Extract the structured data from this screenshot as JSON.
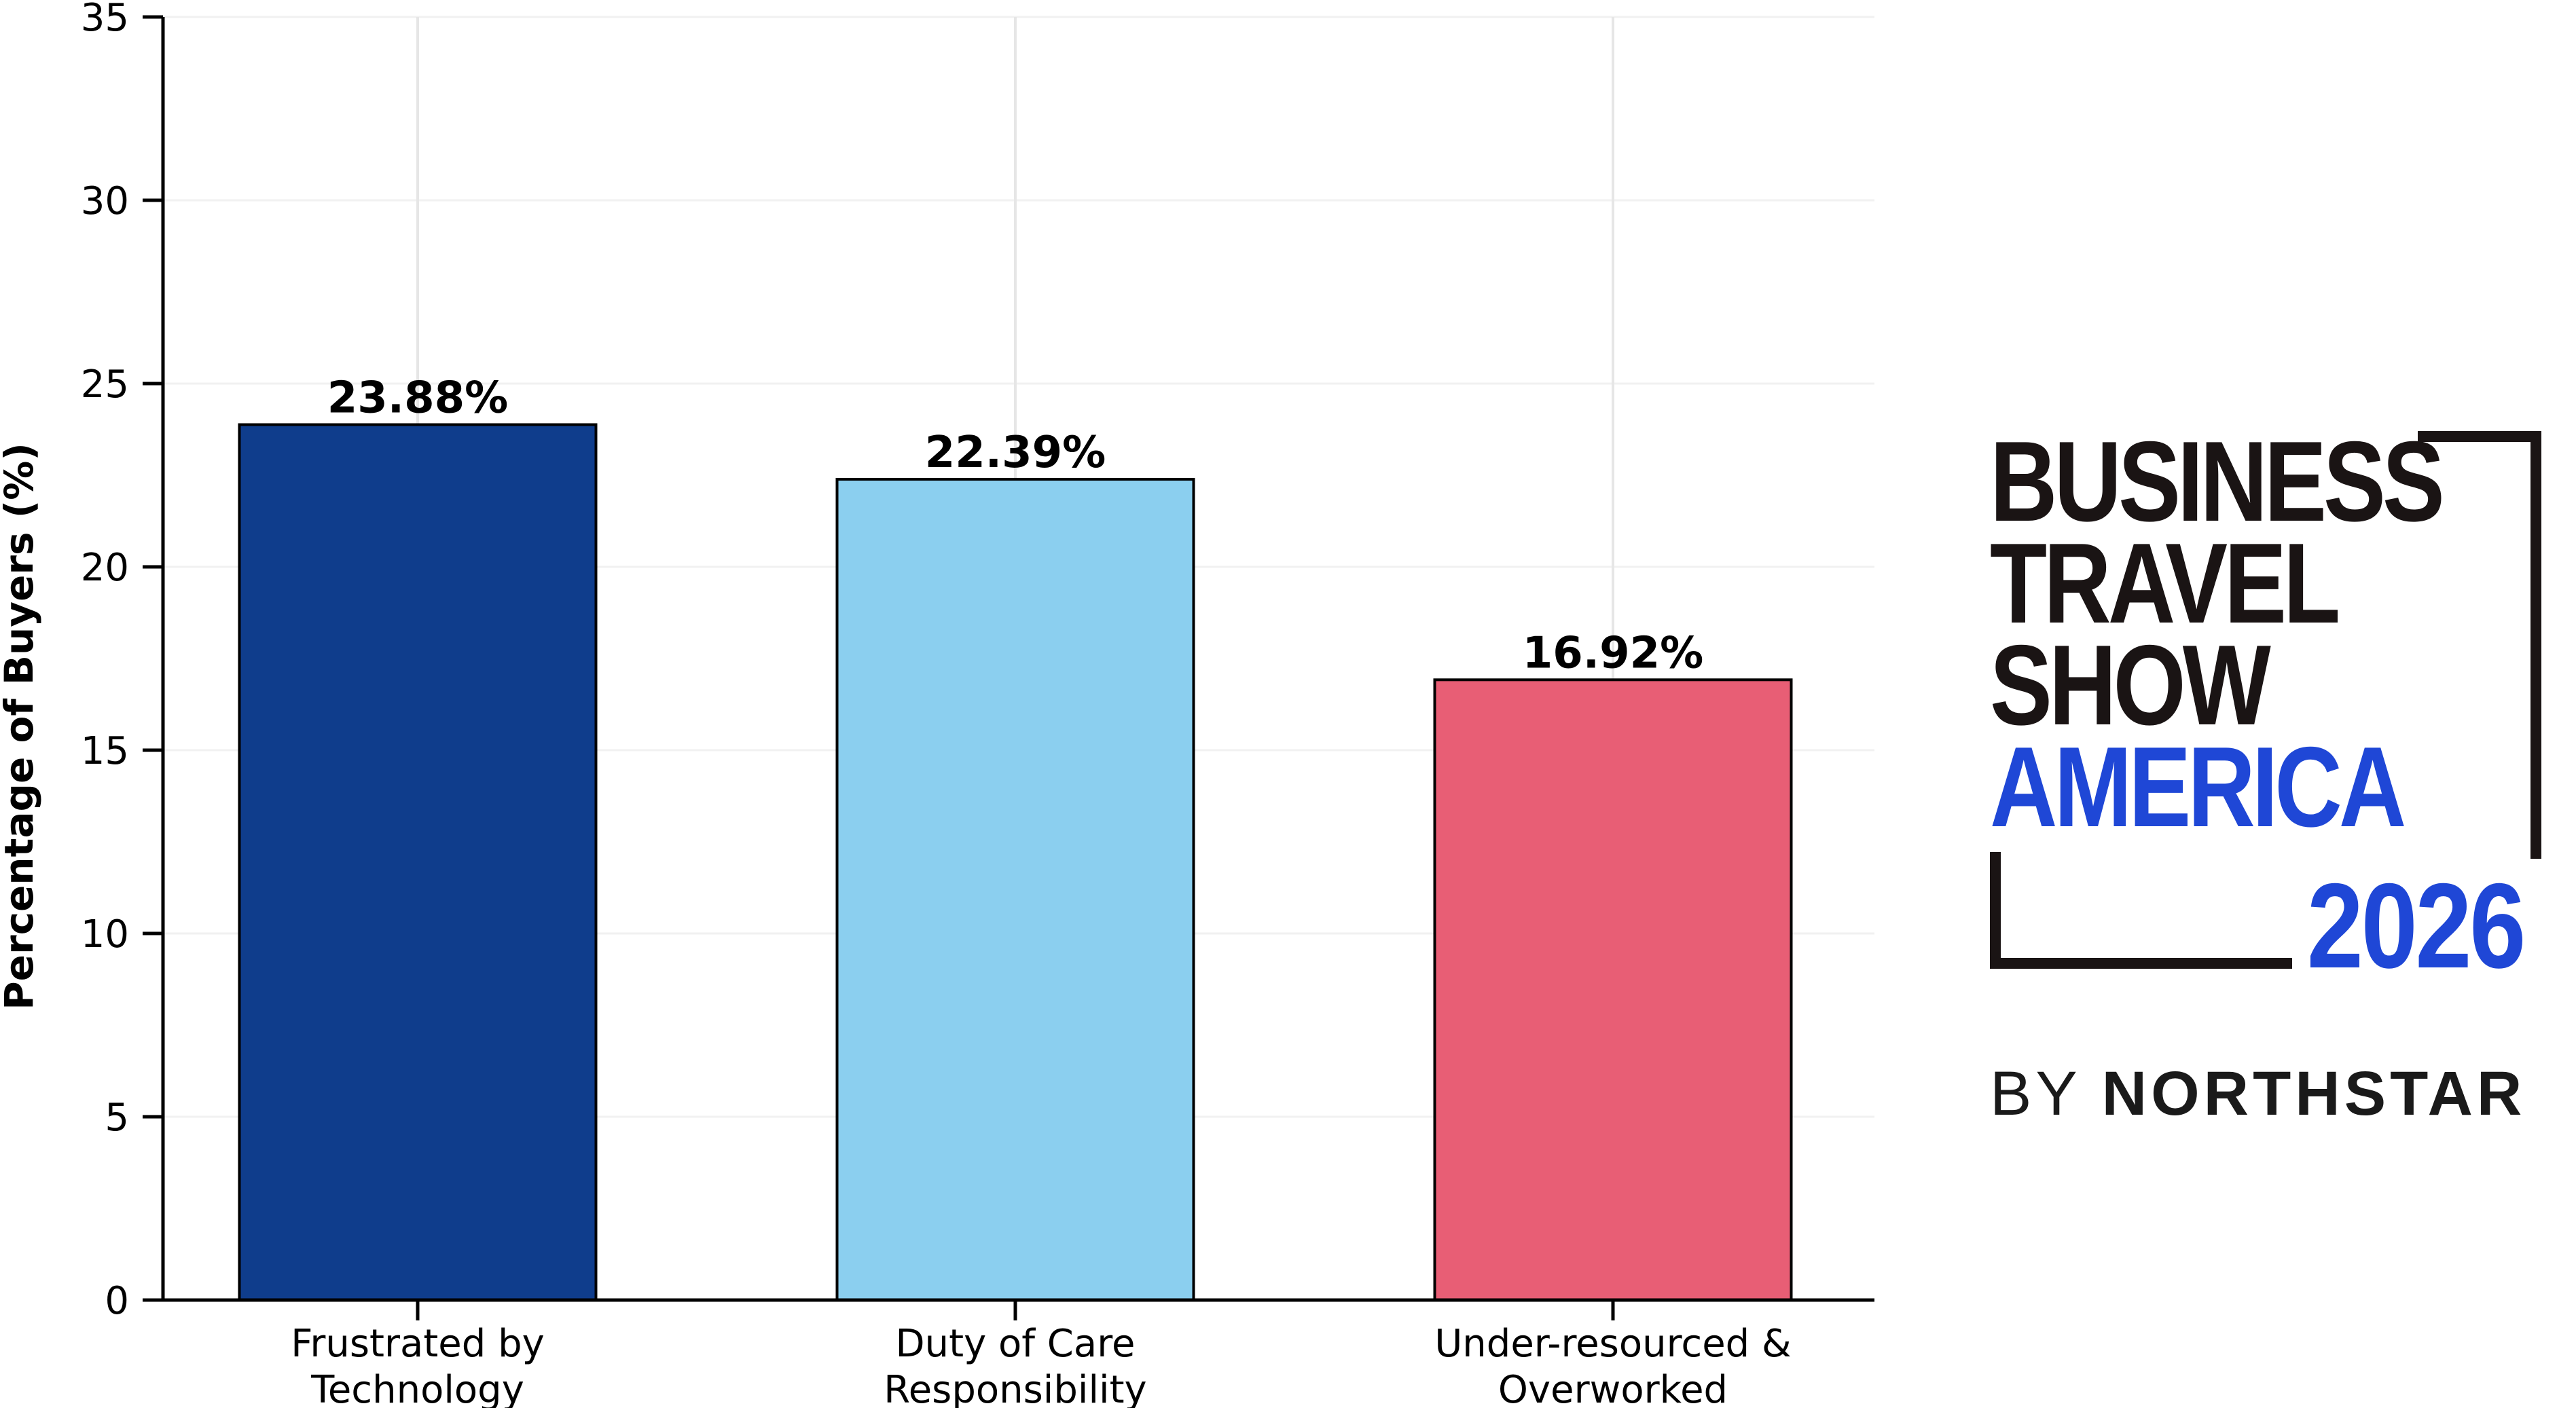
{
  "chart_data": {
    "type": "bar",
    "categories": [
      [
        "Frustrated by",
        "Technology"
      ],
      [
        "Duty of Care",
        "Responsibility"
      ],
      [
        "Under-resourced &",
        "Overworked"
      ]
    ],
    "values": [
      23.88,
      22.39,
      16.92
    ],
    "value_labels": [
      "23.88%",
      "22.39%",
      "16.92%"
    ],
    "colors": [
      "#0f3d8c",
      "#8bcfef",
      "#e85e75"
    ],
    "title": "",
    "xlabel": "",
    "ylabel": "Percentage of Buyers (%)",
    "ylim": [
      0,
      35
    ],
    "yticks": [
      0,
      5,
      10,
      15,
      20,
      25,
      30,
      35
    ],
    "grid": true,
    "legend": "none"
  },
  "logo": {
    "line1": "BUSINESS",
    "line2": "TRAVEL",
    "line3": "SHOW",
    "line4": "AMERICA",
    "year": "2026",
    "by_prefix": "BY",
    "by_name": "NORTHSTAR",
    "dark_color": "#1a1414",
    "blue_color": "#1f47d6"
  }
}
